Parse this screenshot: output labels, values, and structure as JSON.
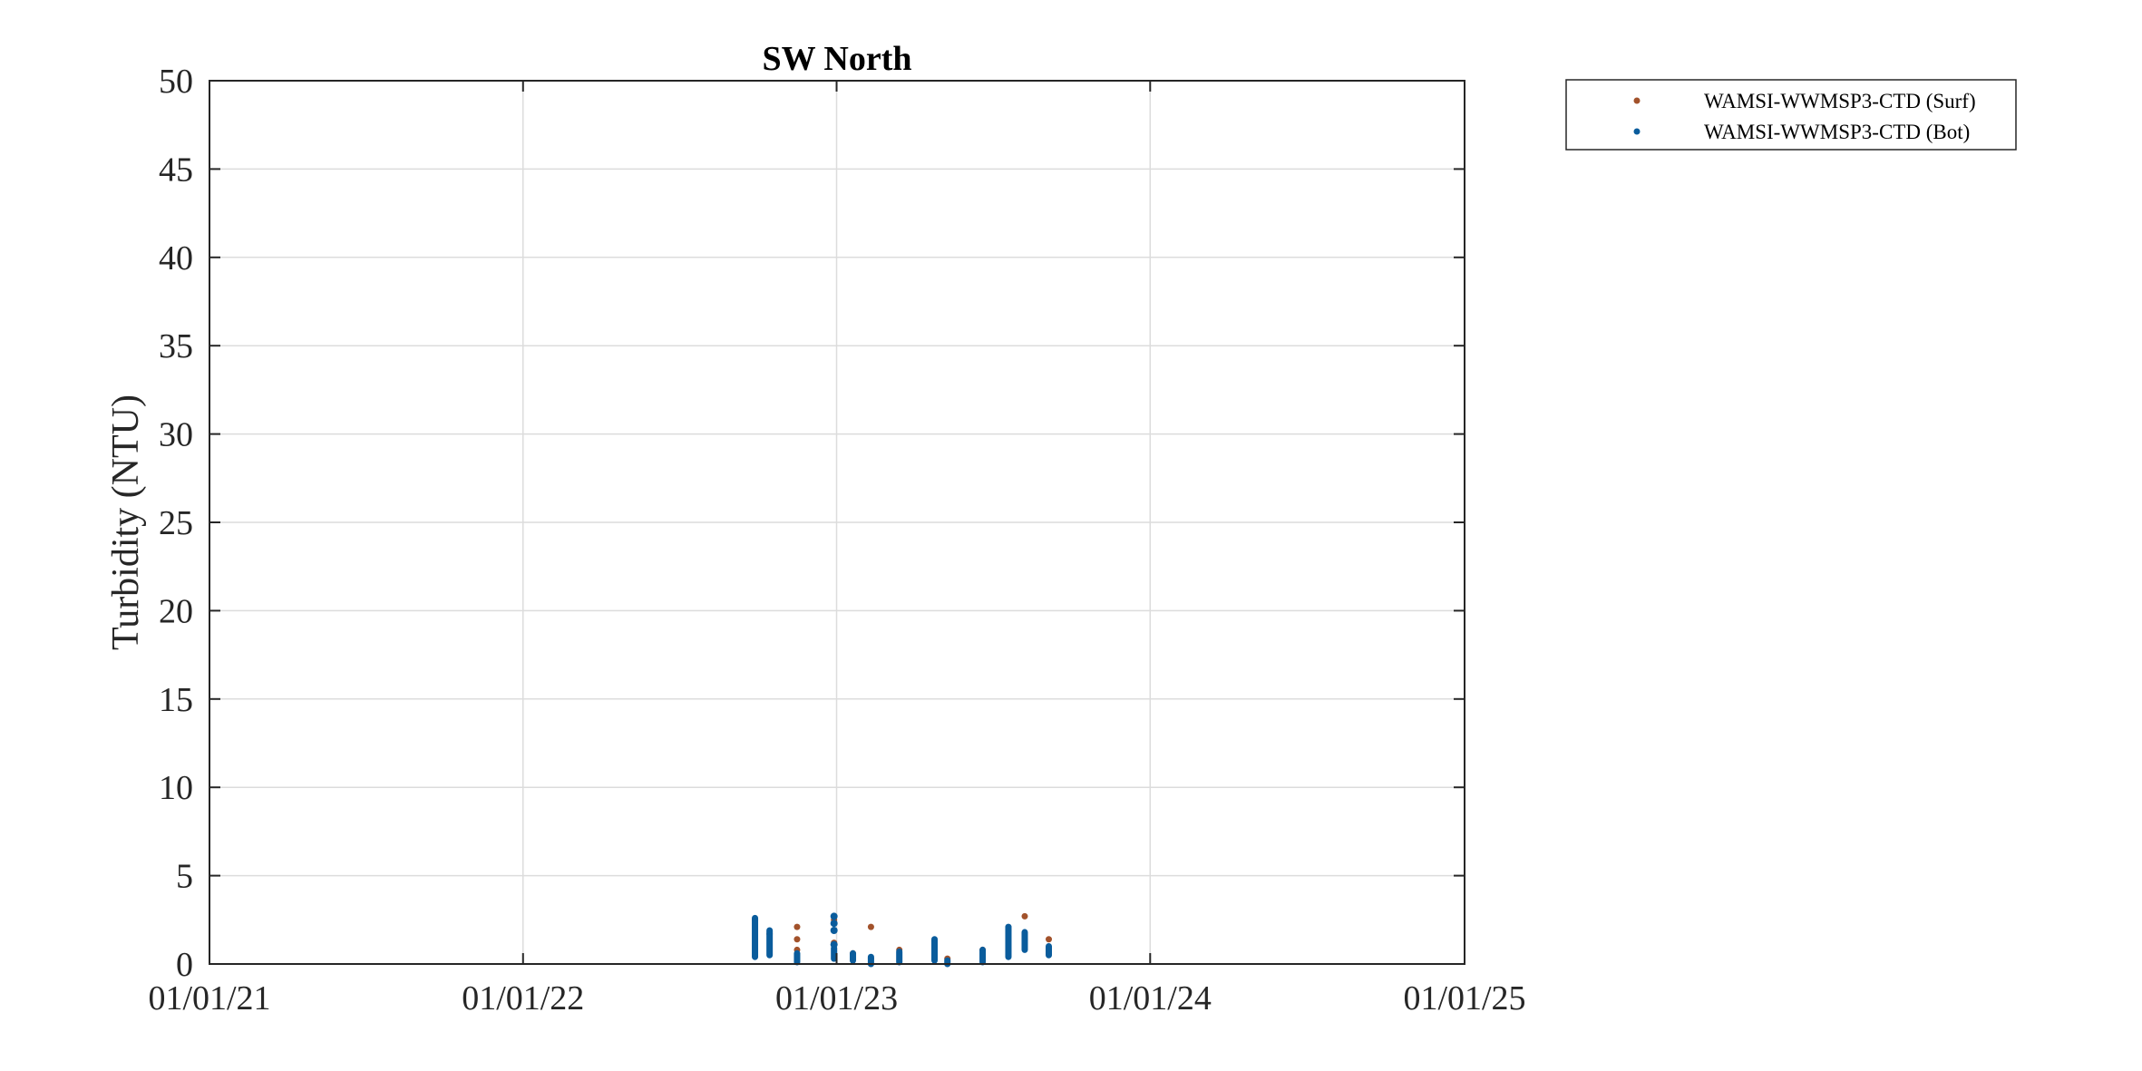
{
  "chart_data": {
    "type": "scatter",
    "title": "SW North",
    "xlabel": "",
    "ylabel": "Turbidity (NTU)",
    "x_axis": {
      "type": "date",
      "range": [
        "2021-01-01",
        "2025-01-01"
      ],
      "ticks": [
        "2021-01-01",
        "2022-01-01",
        "2023-01-01",
        "2024-01-01",
        "2025-01-01"
      ],
      "tick_labels": [
        "01/01/21",
        "01/01/22",
        "01/01/23",
        "01/01/24",
        "01/01/25"
      ]
    },
    "y_axis": {
      "range": [
        0,
        50
      ],
      "ticks": [
        0,
        5,
        10,
        15,
        20,
        25,
        30,
        35,
        40,
        45,
        50
      ],
      "tick_labels": [
        "0",
        "5",
        "10",
        "15",
        "20",
        "25",
        "30",
        "35",
        "40",
        "45",
        "50"
      ]
    },
    "grid": true,
    "legend_placement": "outside-top-right",
    "series": [
      {
        "name": "WAMSI-WWMSP3-CTD (Surf)",
        "color": "#A2522B",
        "points": [
          {
            "x": "2022-09-28",
            "y": 2.5
          },
          {
            "x": "2022-10-15",
            "y": 1.7
          },
          {
            "x": "2022-11-16",
            "y": 2.1
          },
          {
            "x": "2022-11-16",
            "y": 1.4
          },
          {
            "x": "2022-11-16",
            "y": 0.8
          },
          {
            "x": "2022-12-29",
            "y": 2.5
          },
          {
            "x": "2022-12-29",
            "y": 1.2
          },
          {
            "x": "2023-01-20",
            "y": 0.6
          },
          {
            "x": "2023-02-10",
            "y": 2.1
          },
          {
            "x": "2023-02-10",
            "y": 0.3
          },
          {
            "x": "2023-03-15",
            "y": 0.8
          },
          {
            "x": "2023-04-25",
            "y": 1.3
          },
          {
            "x": "2023-05-10",
            "y": 0.3
          },
          {
            "x": "2023-06-20",
            "y": 0.8
          },
          {
            "x": "2023-07-20",
            "y": 1.9
          },
          {
            "x": "2023-08-08",
            "y": 2.7
          },
          {
            "x": "2023-08-08",
            "y": 1.4
          },
          {
            "x": "2023-09-05",
            "y": 1.4
          },
          {
            "x": "2023-09-05",
            "y": 0.9
          }
        ]
      },
      {
        "name": "WAMSI-WWMSP3-CTD (Bot)",
        "color": "#0A5C9C",
        "columns": [
          {
            "x": "2022-09-28",
            "min": 0.4,
            "max": 2.6
          },
          {
            "x": "2022-10-15",
            "min": 0.5,
            "max": 1.9
          },
          {
            "x": "2022-11-16",
            "min": 0.1,
            "max": 0.6
          },
          {
            "x": "2022-12-29",
            "min": 0.3,
            "max": 0.9
          },
          {
            "x": "2023-01-20",
            "min": 0.2,
            "max": 0.6
          },
          {
            "x": "2023-02-10",
            "min": 0.0,
            "max": 0.4
          },
          {
            "x": "2023-03-15",
            "min": 0.1,
            "max": 0.7
          },
          {
            "x": "2023-04-25",
            "min": 0.2,
            "max": 1.4
          },
          {
            "x": "2023-05-10",
            "min": 0.0,
            "max": 0.2
          },
          {
            "x": "2023-06-20",
            "min": 0.1,
            "max": 0.8
          },
          {
            "x": "2023-07-20",
            "min": 0.4,
            "max": 2.1
          },
          {
            "x": "2023-08-08",
            "min": 0.8,
            "max": 1.8
          },
          {
            "x": "2023-09-05",
            "min": 0.5,
            "max": 1.0
          }
        ],
        "points": [
          {
            "x": "2022-12-29",
            "y": 2.7
          },
          {
            "x": "2022-12-29",
            "y": 2.3
          },
          {
            "x": "2022-12-29",
            "y": 1.9
          },
          {
            "x": "2022-12-29",
            "y": 1.1
          }
        ]
      }
    ]
  }
}
